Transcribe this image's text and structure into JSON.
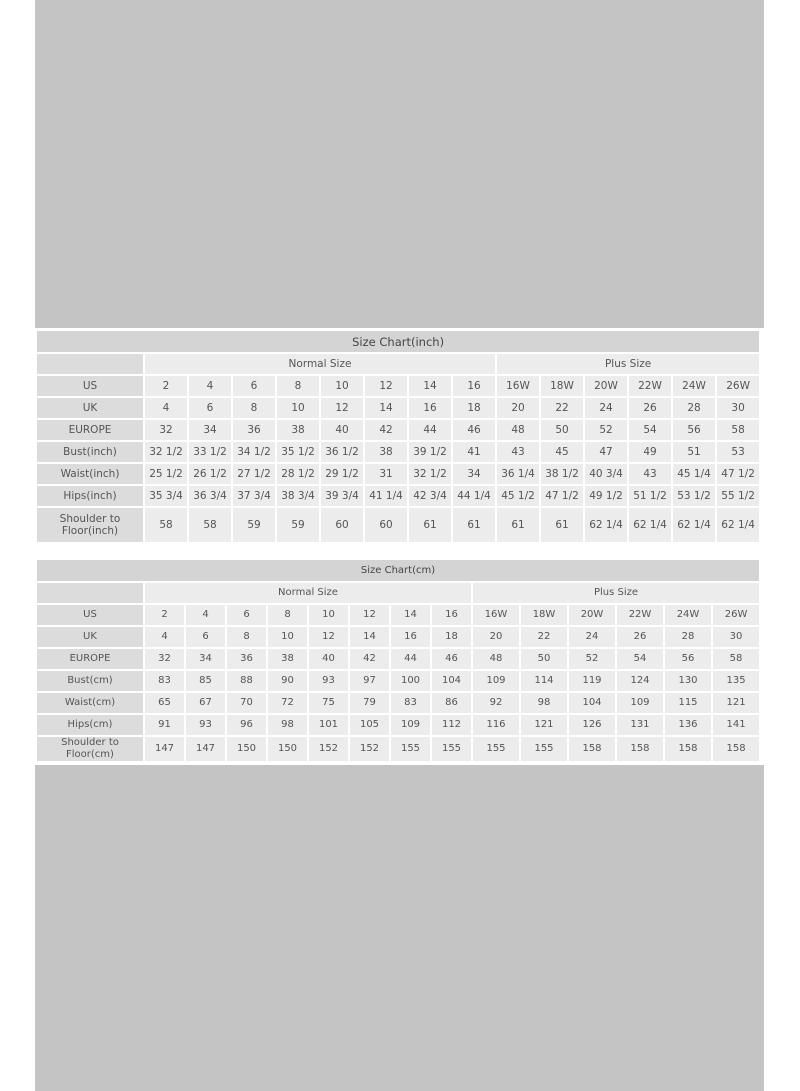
{
  "tables": [
    {
      "title": "Size Chart(inch)",
      "group_normal": "Normal Size",
      "group_plus": "Plus Size",
      "rows": [
        {
          "label": "US",
          "values": [
            "2",
            "4",
            "6",
            "8",
            "10",
            "12",
            "14",
            "16",
            "16W",
            "18W",
            "20W",
            "22W",
            "24W",
            "26W"
          ]
        },
        {
          "label": "UK",
          "values": [
            "4",
            "6",
            "8",
            "10",
            "12",
            "14",
            "16",
            "18",
            "20",
            "22",
            "24",
            "26",
            "28",
            "30"
          ]
        },
        {
          "label": "EUROPE",
          "values": [
            "32",
            "34",
            "36",
            "38",
            "40",
            "42",
            "44",
            "46",
            "48",
            "50",
            "52",
            "54",
            "56",
            "58"
          ]
        },
        {
          "label": "Bust(inch)",
          "values": [
            "32 1/2",
            "33 1/2",
            "34 1/2",
            "35 1/2",
            "36 1/2",
            "38",
            "39 1/2",
            "41",
            "43",
            "45",
            "47",
            "49",
            "51",
            "53"
          ]
        },
        {
          "label": "Waist(inch)",
          "values": [
            "25 1/2",
            "26 1/2",
            "27 1/2",
            "28 1/2",
            "29 1/2",
            "31",
            "32 1/2",
            "34",
            "36 1/4",
            "38 1/2",
            "40 3/4",
            "43",
            "45 1/4",
            "47 1/2"
          ]
        },
        {
          "label": "Hips(inch)",
          "values": [
            "35 3/4",
            "36 3/4",
            "37 3/4",
            "38 3/4",
            "39 3/4",
            "41 1/4",
            "42 3/4",
            "44 1/4",
            "45 1/2",
            "47 1/2",
            "49 1/2",
            "51 1/2",
            "53 1/2",
            "55 1/2"
          ]
        },
        {
          "label": "Shoulder to Floor(inch)",
          "values": [
            "58",
            "58",
            "59",
            "59",
            "60",
            "60",
            "61",
            "61",
            "61",
            "61",
            "62 1/4",
            "62 1/4",
            "62 1/4",
            "62 1/4"
          ]
        }
      ]
    },
    {
      "title": "Size Chart(cm)",
      "group_normal": "Normal Size",
      "group_plus": "Plus Size",
      "rows": [
        {
          "label": "US",
          "values": [
            "2",
            "4",
            "6",
            "8",
            "10",
            "12",
            "14",
            "16",
            "16W",
            "18W",
            "20W",
            "22W",
            "24W",
            "26W"
          ]
        },
        {
          "label": "UK",
          "values": [
            "4",
            "6",
            "8",
            "10",
            "12",
            "14",
            "16",
            "18",
            "20",
            "22",
            "24",
            "26",
            "28",
            "30"
          ]
        },
        {
          "label": "EUROPE",
          "values": [
            "32",
            "34",
            "36",
            "38",
            "40",
            "42",
            "44",
            "46",
            "48",
            "50",
            "52",
            "54",
            "56",
            "58"
          ]
        },
        {
          "label": "Bust(cm)",
          "values": [
            "83",
            "85",
            "88",
            "90",
            "93",
            "97",
            "100",
            "104",
            "109",
            "114",
            "119",
            "124",
            "130",
            "135"
          ]
        },
        {
          "label": "Waist(cm)",
          "values": [
            "65",
            "67",
            "70",
            "72",
            "75",
            "79",
            "83",
            "86",
            "92",
            "98",
            "104",
            "109",
            "115",
            "121"
          ]
        },
        {
          "label": "Hips(cm)",
          "values": [
            "91",
            "93",
            "96",
            "98",
            "101",
            "105",
            "109",
            "112",
            "116",
            "121",
            "126",
            "131",
            "136",
            "141"
          ]
        },
        {
          "label": "Shoulder to Floor(cm)",
          "values": [
            "147",
            "147",
            "150",
            "150",
            "152",
            "152",
            "155",
            "155",
            "155",
            "155",
            "158",
            "158",
            "158",
            "158"
          ]
        }
      ]
    }
  ]
}
